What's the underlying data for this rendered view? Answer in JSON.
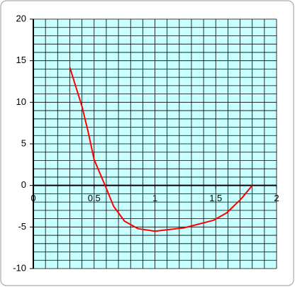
{
  "chart_data": {
    "type": "line",
    "x": [
      0.3,
      0.4,
      0.45,
      0.5,
      0.59,
      0.66,
      0.75,
      0.86,
      1.0,
      1.24,
      1.48,
      1.59,
      1.71,
      1.8
    ],
    "series": [
      {
        "color": "#ff0000",
        "values": [
          14.2,
          9.5,
          6.5,
          3.1,
          0,
          -2.5,
          -4.3,
          -5.2,
          -5.5,
          -5.1,
          -4.2,
          -3.3,
          -1.6,
          0
        ]
      }
    ],
    "xlim": [
      0,
      2
    ],
    "ylim": [
      -10,
      20
    ],
    "xticks": [
      0,
      0.5,
      1,
      1.5,
      2
    ],
    "yticks": [
      -10,
      -5,
      0,
      5,
      10,
      15,
      20
    ],
    "grid": true,
    "minor_grid": {
      "x": 0.1,
      "y": 1
    },
    "background": "#c8ffff"
  }
}
